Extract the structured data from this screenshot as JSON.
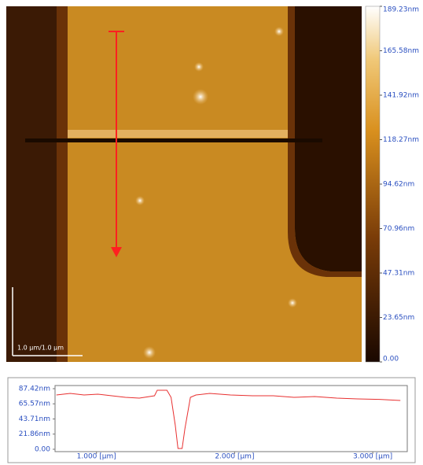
{
  "scale_bar": "1.0 μm/1.0 μm",
  "colorbar": {
    "lim": [
      0,
      189.23
    ],
    "ticks": [
      {
        "value": 189.23,
        "label": "189.23nm"
      },
      {
        "value": 165.58,
        "label": "165.58nm"
      },
      {
        "value": 141.92,
        "label": "141.92nm"
      },
      {
        "value": 118.27,
        "label": "118.27nm"
      },
      {
        "value": 94.62,
        "label": "94.62nm"
      },
      {
        "value": 70.96,
        "label": "70.96nm"
      },
      {
        "value": 47.31,
        "label": "47.31nm"
      },
      {
        "value": 23.65,
        "label": "23.65nm"
      },
      {
        "value": 0,
        "label": "0.00"
      }
    ]
  },
  "chart_data": {
    "type": "line",
    "color": "#e83030",
    "x": [
      0.71,
      0.81,
      0.91,
      1.01,
      1.11,
      1.21,
      1.31,
      1.42,
      1.44,
      1.51,
      1.54,
      1.57,
      1.59,
      1.62,
      1.64,
      1.68,
      1.72,
      1.82,
      1.97,
      2.13,
      2.28,
      2.43,
      2.58,
      2.74,
      2.89,
      3.05,
      3.2
    ],
    "values": [
      78.3,
      80.6,
      78.3,
      79.5,
      77.2,
      74.9,
      73.8,
      77.2,
      85.2,
      85.2,
      74.9,
      35.2,
      1.1,
      1.1,
      29.5,
      74.9,
      78.3,
      80.6,
      78.3,
      77.2,
      77.2,
      74.9,
      76.0,
      73.8,
      72.6,
      72.0,
      70.4
    ],
    "xlim": [
      0.7,
      3.25
    ],
    "xticks": [
      {
        "value": 1,
        "label": "1.000 [μm]"
      },
      {
        "value": 2,
        "label": "2.000 [μm]"
      },
      {
        "value": 3,
        "label": "3.000 [μm]"
      }
    ],
    "ylim": [
      0,
      87.42
    ],
    "yticks": [
      {
        "value": 87.42,
        "label": "87.42nm"
      },
      {
        "value": 65.57,
        "label": "65.57nm"
      },
      {
        "value": 43.71,
        "label": "43.71nm"
      },
      {
        "value": 21.86,
        "label": "21.86nm"
      },
      {
        "value": 0,
        "label": "0.00"
      }
    ]
  }
}
